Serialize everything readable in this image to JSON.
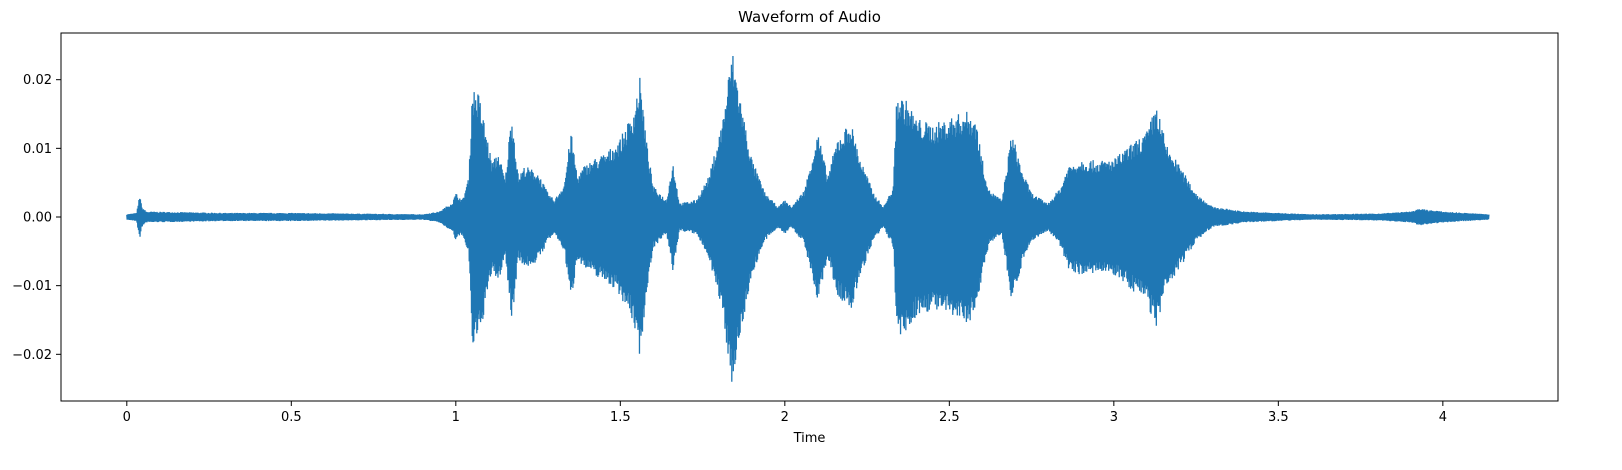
{
  "chart_data": {
    "type": "line",
    "title": "Waveform of Audio",
    "xlabel": "Time",
    "ylabel": "",
    "xlim": [
      -0.2,
      4.35
    ],
    "ylim": [
      -0.0268,
      0.0268
    ],
    "xticks": [
      0,
      0.5,
      1,
      1.5,
      2,
      2.5,
      3,
      3.5,
      4
    ],
    "xtick_labels": [
      "0",
      "0.5",
      "1",
      "1.5",
      "2",
      "2.5",
      "3",
      "3.5",
      "4"
    ],
    "yticks": [
      -0.02,
      -0.01,
      0.0,
      0.01,
      0.02
    ],
    "ytick_labels": [
      "−0.02",
      "−0.01",
      "0.00",
      "0.01",
      "0.02"
    ],
    "grid": false,
    "series": [
      {
        "color": "#1f77b4",
        "duration": 4.14,
        "envelope": [
          [
            0.0,
            0.0004
          ],
          [
            0.03,
            0.0006
          ],
          [
            0.04,
            0.0035
          ],
          [
            0.045,
            0.0015
          ],
          [
            0.06,
            0.0008
          ],
          [
            0.3,
            0.0006
          ],
          [
            0.5,
            0.0006
          ],
          [
            0.9,
            0.0004
          ],
          [
            0.95,
            0.0008
          ],
          [
            0.99,
            0.0022
          ],
          [
            1.0,
            0.0035
          ],
          [
            1.02,
            0.0025
          ],
          [
            1.04,
            0.006
          ],
          [
            1.05,
            0.019
          ],
          [
            1.07,
            0.018
          ],
          [
            1.09,
            0.013
          ],
          [
            1.11,
            0.008
          ],
          [
            1.13,
            0.0095
          ],
          [
            1.15,
            0.0055
          ],
          [
            1.17,
            0.0155
          ],
          [
            1.19,
            0.006
          ],
          [
            1.21,
            0.0075
          ],
          [
            1.25,
            0.0065
          ],
          [
            1.28,
            0.0035
          ],
          [
            1.3,
            0.0025
          ],
          [
            1.33,
            0.005
          ],
          [
            1.35,
            0.0125
          ],
          [
            1.37,
            0.006
          ],
          [
            1.39,
            0.0075
          ],
          [
            1.42,
            0.0085
          ],
          [
            1.46,
            0.0095
          ],
          [
            1.5,
            0.0115
          ],
          [
            1.54,
            0.0155
          ],
          [
            1.56,
            0.0205
          ],
          [
            1.58,
            0.011
          ],
          [
            1.6,
            0.0045
          ],
          [
            1.64,
            0.0025
          ],
          [
            1.66,
            0.008
          ],
          [
            1.68,
            0.002
          ],
          [
            1.73,
            0.0025
          ],
          [
            1.77,
            0.006
          ],
          [
            1.81,
            0.014
          ],
          [
            1.84,
            0.0245
          ],
          [
            1.87,
            0.016
          ],
          [
            1.9,
            0.0085
          ],
          [
            1.94,
            0.0035
          ],
          [
            1.98,
            0.0015
          ],
          [
            2.0,
            0.0025
          ],
          [
            2.02,
            0.0015
          ],
          [
            2.06,
            0.004
          ],
          [
            2.1,
            0.0125
          ],
          [
            2.13,
            0.006
          ],
          [
            2.16,
            0.0115
          ],
          [
            2.2,
            0.014
          ],
          [
            2.23,
            0.0085
          ],
          [
            2.27,
            0.0035
          ],
          [
            2.3,
            0.0015
          ],
          [
            2.33,
            0.0045
          ],
          [
            2.34,
            0.018
          ],
          [
            2.37,
            0.017
          ],
          [
            2.4,
            0.0145
          ],
          [
            2.45,
            0.0135
          ],
          [
            2.5,
            0.0145
          ],
          [
            2.55,
            0.0155
          ],
          [
            2.58,
            0.0145
          ],
          [
            2.6,
            0.0085
          ],
          [
            2.62,
            0.004
          ],
          [
            2.66,
            0.0025
          ],
          [
            2.69,
            0.0125
          ],
          [
            2.72,
            0.007
          ],
          [
            2.75,
            0.0035
          ],
          [
            2.8,
            0.002
          ],
          [
            2.84,
            0.0045
          ],
          [
            2.86,
            0.0075
          ],
          [
            2.9,
            0.0085
          ],
          [
            2.95,
            0.0082
          ],
          [
            3.0,
            0.0085
          ],
          [
            3.05,
            0.0105
          ],
          [
            3.1,
            0.0125
          ],
          [
            3.13,
            0.0165
          ],
          [
            3.16,
            0.0105
          ],
          [
            3.2,
            0.0075
          ],
          [
            3.25,
            0.0035
          ],
          [
            3.3,
            0.0015
          ],
          [
            3.4,
            0.0008
          ],
          [
            3.6,
            0.0004
          ],
          [
            3.8,
            0.0005
          ],
          [
            3.9,
            0.0008
          ],
          [
            3.93,
            0.0012
          ],
          [
            4.0,
            0.0008
          ],
          [
            4.14,
            0.0004
          ]
        ]
      }
    ]
  }
}
